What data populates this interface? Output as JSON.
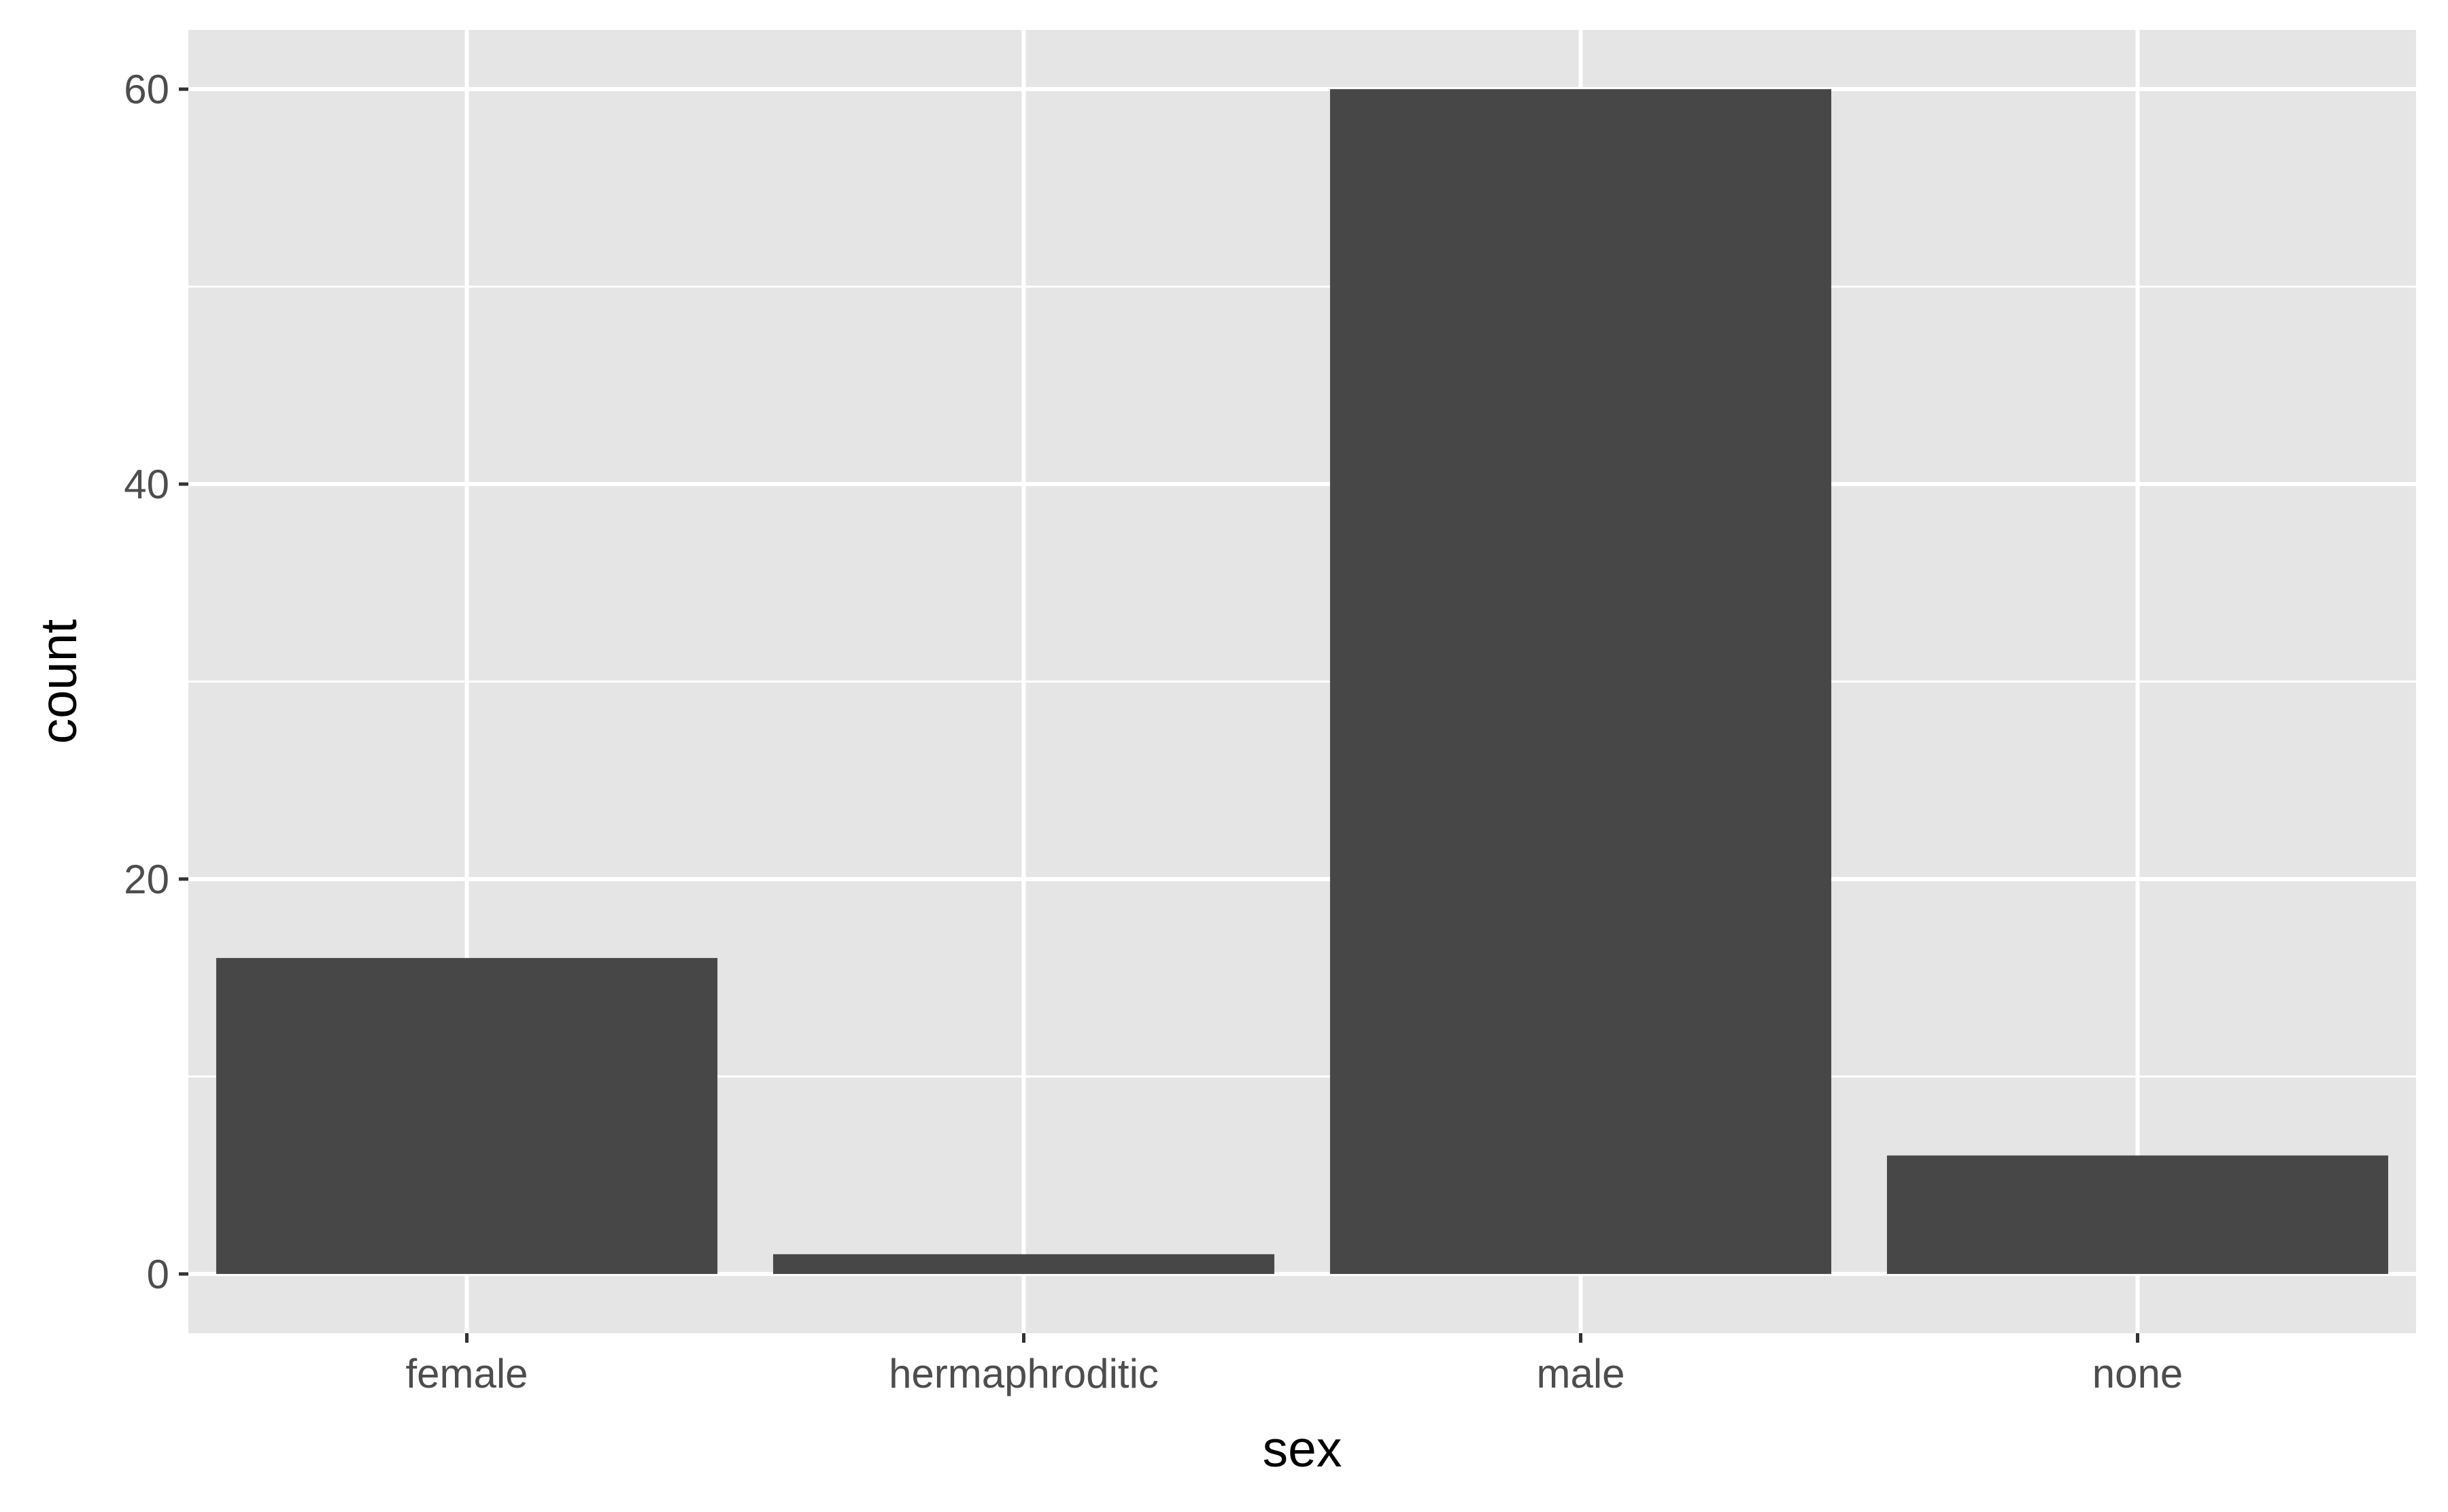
{
  "chart_data": {
    "type": "bar",
    "title": "",
    "xlabel": "sex",
    "ylabel": "count",
    "categories": [
      "female",
      "hermaphroditic",
      "male",
      "none"
    ],
    "values": [
      16,
      1,
      60,
      6
    ],
    "ylim": [
      -3,
      63
    ],
    "y_major_ticks": [
      0,
      20,
      40,
      60
    ],
    "y_minor_ticks": [
      10,
      30,
      50
    ],
    "grid": true,
    "legend": "none",
    "colors": {
      "panel_background": "#e5e5e5",
      "grid": "#ffffff",
      "bar_fill": "#474747",
      "tick_label": "#4d4d4d",
      "tick_mark": "#333333",
      "axis_title": "#000000"
    }
  }
}
